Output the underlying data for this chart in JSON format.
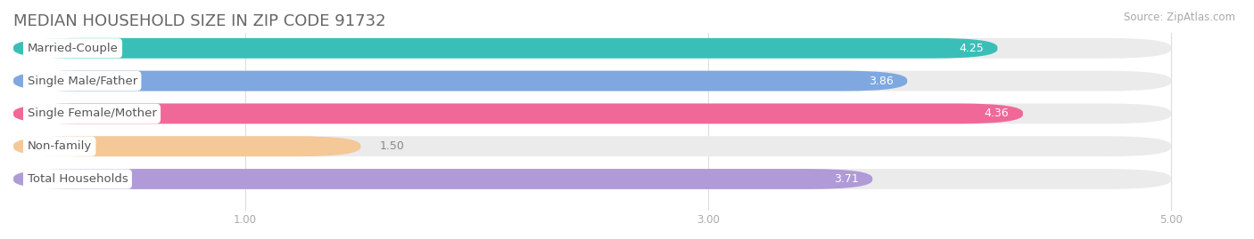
{
  "title": "MEDIAN HOUSEHOLD SIZE IN ZIP CODE 91732",
  "source": "Source: ZipAtlas.com",
  "categories": [
    "Married-Couple",
    "Single Male/Father",
    "Single Female/Mother",
    "Non-family",
    "Total Households"
  ],
  "values": [
    4.25,
    3.86,
    4.36,
    1.5,
    3.71
  ],
  "colors": [
    "#3abfb8",
    "#7fa8e0",
    "#f06898",
    "#f5c898",
    "#b09ad8"
  ],
  "xlim": [
    0,
    5.3
  ],
  "xmin": 0.0,
  "xmax": 5.0,
  "xticks": [
    1.0,
    3.0,
    5.0
  ],
  "bar_height": 0.62,
  "background_color": "#ffffff",
  "bar_bg_color": "#ebebeb",
  "title_fontsize": 13,
  "label_fontsize": 9.5,
  "value_fontsize": 9,
  "source_fontsize": 8.5,
  "title_color": "#666666",
  "label_color": "#555555",
  "value_color_inside": "#ffffff",
  "value_color_outside": "#888888",
  "tick_color": "#aaaaaa"
}
